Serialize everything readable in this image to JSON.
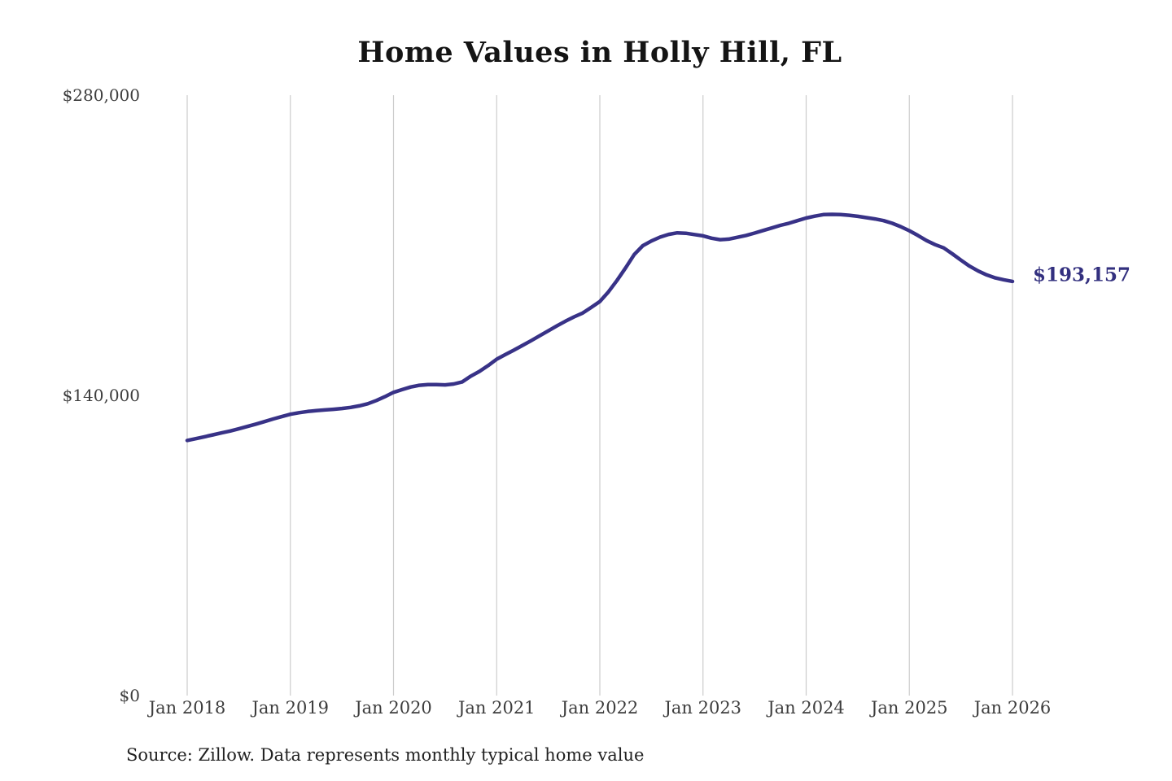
{
  "chart": {
    "title": "Home Values in Holly Hill, FL",
    "end_label": "$193,157",
    "source": "Source: Zillow. Data represents monthly typical home value",
    "colors": {
      "line": "#383287",
      "grid": "#cccccc",
      "axis_text": "#3d3d3d",
      "annotation": "#33307f",
      "title": "#141414"
    }
  },
  "chart_data": {
    "type": "line",
    "title": "Home Values in Holly Hill, FL",
    "xlabel": "",
    "ylabel": "",
    "frequency": "monthly",
    "x_start": "2018-01",
    "x_end": "2026-01",
    "x_tick_labels": [
      "Jan 2018",
      "Jan 2019",
      "Jan 2020",
      "Jan 2021",
      "Jan 2022",
      "Jan 2023",
      "Jan 2024",
      "Jan 2025",
      "Jan 2026"
    ],
    "y_tick_labels": [
      "$0",
      "$140,000",
      "$280,000"
    ],
    "y_tick_values": [
      0,
      140000,
      280000
    ],
    "ylim": [
      0,
      280000
    ],
    "grid": "vertical-only",
    "legend": "none",
    "series": [
      {
        "name": "Typical home value",
        "values": [
          119000,
          119800,
          120700,
          121600,
          122500,
          123400,
          124400,
          125500,
          126600,
          127800,
          129000,
          130100,
          131200,
          131900,
          132500,
          132900,
          133200,
          133500,
          133900,
          134400,
          135100,
          136100,
          137600,
          139400,
          141400,
          142700,
          143900,
          144700,
          145000,
          145000,
          144900,
          145300,
          146300,
          149000,
          151200,
          153900,
          156900,
          159000,
          161100,
          163300,
          165500,
          167800,
          170100,
          172400,
          174600,
          176600,
          178400,
          181000,
          183800,
          188300,
          193600,
          199500,
          205700,
          209800,
          212000,
          213800,
          215100,
          215800,
          215600,
          215000,
          214400,
          213300,
          212600,
          212900,
          213700,
          214600,
          215700,
          216900,
          218100,
          219300,
          220300,
          221500,
          222700,
          223600,
          224300,
          224400,
          224300,
          224000,
          223500,
          222900,
          222300,
          221500,
          220300,
          218700,
          216800,
          214600,
          212200,
          210300,
          208800,
          206000,
          203100,
          200300,
          198000,
          196200,
          194800,
          193900,
          193157
        ]
      }
    ],
    "last_point": {
      "x": "2026-01",
      "value": 193157,
      "label": "$193,157"
    }
  }
}
